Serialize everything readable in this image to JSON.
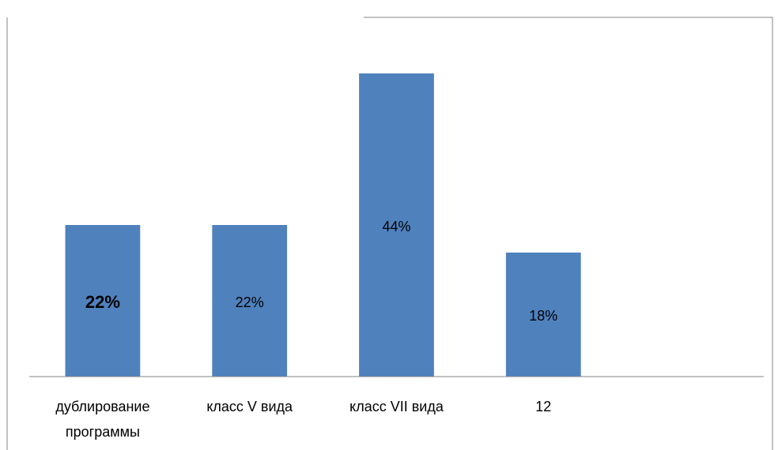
{
  "chart_data": {
    "type": "bar",
    "categories": [
      "дублирование программы",
      "класс V вида",
      "класс VII вида",
      "12",
      null
    ],
    "values": [
      22,
      22,
      44,
      18,
      null
    ],
    "value_labels": [
      "22%",
      "22%",
      "44%",
      "18%",
      null
    ],
    "color": "#4f81bd"
  }
}
